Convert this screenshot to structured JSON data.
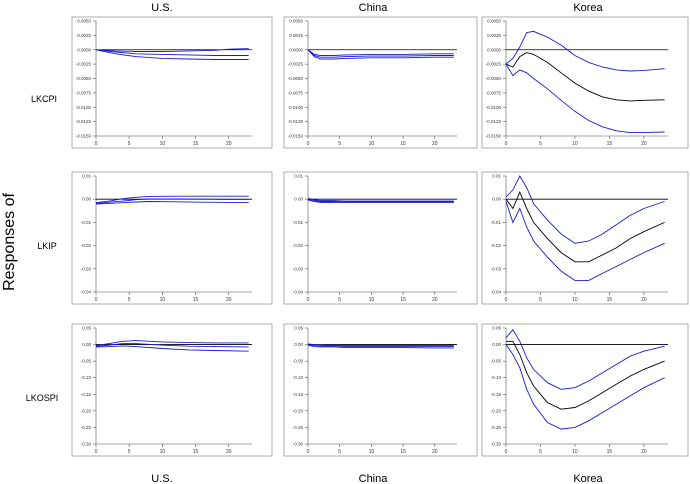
{
  "figure": {
    "y_title": "Responses of",
    "col_headers_top": [
      "U.S.",
      "China",
      "Korea"
    ],
    "col_headers_bottom": [
      "U.S.",
      "China",
      "Korea"
    ],
    "row_labels": [
      "LKCPI",
      "LKIP",
      "LKOSPI"
    ],
    "line_color": "#1a1ad6",
    "center_color": "#000000"
  },
  "chart_data": [
    {
      "type": "line",
      "variable": "LKCPI",
      "shock": "U.S.",
      "ylim": [
        -0.015,
        0.005
      ],
      "yticks": [
        "0.0050",
        "0.0025",
        "0.0000",
        "-0.0025",
        "-0.0050",
        "-0.0075",
        "-0.0100",
        "-0.0125",
        "-0.0150"
      ],
      "xticks": [
        "0",
        "5",
        "10",
        "15",
        "20"
      ],
      "series": [
        {
          "name": "upper",
          "x": [
            0,
            3,
            6,
            10,
            14,
            18,
            20,
            23
          ],
          "values": [
            0,
            -0.0002,
            -0.0003,
            -0.0003,
            -0.0002,
            -0.0001,
            0.0001,
            0.0002
          ]
        },
        {
          "name": "response",
          "x": [
            0,
            3,
            6,
            10,
            14,
            18,
            20,
            23
          ],
          "values": [
            0,
            -0.0004,
            -0.0007,
            -0.0008,
            -0.0009,
            -0.001,
            -0.001,
            -0.001
          ]
        },
        {
          "name": "lower",
          "x": [
            0,
            3,
            6,
            10,
            14,
            18,
            20,
            23
          ],
          "values": [
            0,
            -0.0007,
            -0.0012,
            -0.0015,
            -0.0016,
            -0.0017,
            -0.0017,
            -0.0017
          ]
        }
      ]
    },
    {
      "type": "line",
      "variable": "LKCPI",
      "shock": "China",
      "ylim": [
        -0.015,
        0.005
      ],
      "yticks": [
        "0.0050",
        "0.0025",
        "0.0000",
        "-0.0025",
        "-0.0050",
        "-0.0075",
        "-0.0100",
        "-0.0125",
        "-0.0150"
      ],
      "xticks": [
        "0",
        "5",
        "10",
        "15",
        "20"
      ],
      "series": [
        {
          "name": "upper",
          "x": [
            0,
            1,
            2,
            4,
            6,
            10,
            15,
            20,
            23
          ],
          "values": [
            0,
            -0.0008,
            -0.001,
            -0.001,
            -0.0009,
            -0.0008,
            -0.0008,
            -0.0007,
            -0.0007
          ]
        },
        {
          "name": "response",
          "x": [
            0,
            1,
            2,
            4,
            6,
            10,
            15,
            20,
            23
          ],
          "values": [
            0,
            -0.001,
            -0.0013,
            -0.0013,
            -0.0012,
            -0.0011,
            -0.0011,
            -0.001,
            -0.001
          ]
        },
        {
          "name": "lower",
          "x": [
            0,
            1,
            2,
            4,
            6,
            10,
            15,
            20,
            23
          ],
          "values": [
            0,
            -0.0012,
            -0.0016,
            -0.0016,
            -0.0015,
            -0.0014,
            -0.0014,
            -0.0013,
            -0.0013
          ]
        }
      ]
    },
    {
      "type": "line",
      "variable": "LKCPI",
      "shock": "Korea",
      "ylim": [
        -0.015,
        0.005
      ],
      "yticks": [
        "0.0050",
        "0.0025",
        "0.0000",
        "-0.0025",
        "-0.0050",
        "-0.0075",
        "-0.0100",
        "-0.0125",
        "-0.0150"
      ],
      "xticks": [
        "0",
        "5",
        "10",
        "15",
        "20"
      ],
      "series": [
        {
          "name": "upper",
          "x": [
            0,
            1,
            2,
            3,
            4,
            6,
            8,
            10,
            12,
            14,
            16,
            18,
            20,
            23
          ],
          "values": [
            -0.0025,
            -0.0015,
            0.0005,
            0.003,
            0.0032,
            0.0022,
            0.0008,
            -0.001,
            -0.0022,
            -0.003,
            -0.0035,
            -0.0037,
            -0.0036,
            -0.0033
          ]
        },
        {
          "name": "response",
          "x": [
            0,
            1,
            2,
            3,
            4,
            6,
            8,
            10,
            12,
            14,
            16,
            18,
            20,
            23
          ],
          "values": [
            -0.0025,
            -0.003,
            -0.0012,
            -0.0005,
            -0.0008,
            -0.0022,
            -0.004,
            -0.0058,
            -0.0072,
            -0.0082,
            -0.0087,
            -0.0089,
            -0.0088,
            -0.0087
          ]
        },
        {
          "name": "lower",
          "x": [
            0,
            1,
            2,
            3,
            4,
            6,
            8,
            10,
            12,
            14,
            16,
            18,
            20,
            23
          ],
          "values": [
            -0.0025,
            -0.0045,
            -0.0035,
            -0.004,
            -0.005,
            -0.0068,
            -0.0088,
            -0.0107,
            -0.0123,
            -0.0134,
            -0.0141,
            -0.0144,
            -0.0144,
            -0.0143
          ]
        }
      ]
    },
    {
      "type": "line",
      "variable": "LKIP",
      "shock": "U.S.",
      "ylim": [
        -0.04,
        0.01
      ],
      "yticks": [
        "0.01",
        "0.00",
        "-0.01",
        "-0.02",
        "-0.03",
        "-0.04"
      ],
      "xticks": [
        "0",
        "5",
        "10",
        "15",
        "20"
      ],
      "series": [
        {
          "name": "upper",
          "x": [
            0,
            2,
            4,
            6,
            8,
            12,
            16,
            20,
            23
          ],
          "values": [
            -0.0015,
            -0.0008,
            0.0002,
            0.0008,
            0.0012,
            0.0013,
            0.0013,
            0.0013,
            0.0013
          ]
        },
        {
          "name": "response",
          "x": [
            0,
            2,
            4,
            6,
            8,
            12,
            16,
            20,
            23
          ],
          "values": [
            -0.0018,
            -0.0013,
            -0.0008,
            -0.0002,
            0.0001,
            0.0001,
            0.0,
            -0.0001,
            -0.0001
          ]
        },
        {
          "name": "lower",
          "x": [
            0,
            2,
            4,
            6,
            8,
            12,
            16,
            20,
            23
          ],
          "values": [
            -0.0021,
            -0.0018,
            -0.0015,
            -0.0012,
            -0.001,
            -0.0011,
            -0.0013,
            -0.0014,
            -0.0014
          ]
        }
      ]
    },
    {
      "type": "line",
      "variable": "LKIP",
      "shock": "China",
      "ylim": [
        -0.04,
        0.01
      ],
      "yticks": [
        "0.01",
        "0.00",
        "-0.01",
        "-0.02",
        "-0.03",
        "-0.04"
      ],
      "xticks": [
        "0",
        "5",
        "10",
        "15",
        "20"
      ],
      "series": [
        {
          "name": "upper",
          "x": [
            0,
            1,
            2,
            4,
            6,
            10,
            15,
            20,
            23
          ],
          "values": [
            0.0003,
            -0.0002,
            -0.0006,
            -0.0006,
            -0.0008,
            -0.0008,
            -0.0008,
            -0.0008,
            -0.0008
          ]
        },
        {
          "name": "response",
          "x": [
            0,
            1,
            2,
            4,
            6,
            10,
            15,
            20,
            23
          ],
          "values": [
            0.0,
            -0.0006,
            -0.001,
            -0.001,
            -0.0011,
            -0.0011,
            -0.0011,
            -0.0011,
            -0.0011
          ]
        },
        {
          "name": "lower",
          "x": [
            0,
            1,
            2,
            4,
            6,
            10,
            15,
            20,
            23
          ],
          "values": [
            -0.0003,
            -0.001,
            -0.0014,
            -0.0014,
            -0.0014,
            -0.0014,
            -0.0014,
            -0.0014,
            -0.0014
          ]
        }
      ]
    },
    {
      "type": "line",
      "variable": "LKIP",
      "shock": "Korea",
      "ylim": [
        -0.04,
        0.01
      ],
      "yticks": [
        "0.01",
        "0.00",
        "-0.01",
        "-0.02",
        "-0.03",
        "-0.04"
      ],
      "xticks": [
        "0",
        "5",
        "10",
        "15",
        "20"
      ],
      "series": [
        {
          "name": "upper",
          "x": [
            0,
            1,
            2,
            3,
            4,
            6,
            8,
            10,
            12,
            14,
            16,
            18,
            20,
            23
          ],
          "values": [
            0.001,
            0.004,
            0.01,
            0.005,
            -0.002,
            -0.009,
            -0.015,
            -0.019,
            -0.018,
            -0.015,
            -0.011,
            -0.007,
            -0.004,
            -0.001
          ]
        },
        {
          "name": "response",
          "x": [
            0,
            1,
            2,
            3,
            4,
            6,
            8,
            10,
            12,
            14,
            16,
            18,
            20,
            23
          ],
          "values": [
            0.0,
            -0.004,
            0.003,
            -0.004,
            -0.01,
            -0.017,
            -0.023,
            -0.027,
            -0.027,
            -0.024,
            -0.021,
            -0.017,
            -0.014,
            -0.01
          ]
        },
        {
          "name": "lower",
          "x": [
            0,
            1,
            2,
            3,
            4,
            6,
            8,
            10,
            12,
            14,
            16,
            18,
            20,
            23
          ],
          "values": [
            -0.001,
            -0.01,
            -0.004,
            -0.012,
            -0.018,
            -0.025,
            -0.031,
            -0.035,
            -0.035,
            -0.032,
            -0.029,
            -0.026,
            -0.023,
            -0.019
          ]
        }
      ]
    },
    {
      "type": "line",
      "variable": "LKOSPI",
      "shock": "U.S.",
      "ylim": [
        -0.3,
        0.05
      ],
      "yticks": [
        "0.05",
        "0.00",
        "-0.05",
        "-0.10",
        "-0.15",
        "-0.20",
        "-0.25",
        "-0.30"
      ],
      "xticks": [
        "0",
        "5",
        "10",
        "15",
        "20"
      ],
      "series": [
        {
          "name": "upper",
          "x": [
            0,
            2,
            4,
            6,
            10,
            14,
            18,
            23
          ],
          "values": [
            -0.003,
            0.003,
            0.01,
            0.012,
            0.008,
            0.006,
            0.005,
            0.005
          ]
        },
        {
          "name": "response",
          "x": [
            0,
            2,
            4,
            6,
            10,
            14,
            18,
            23
          ],
          "values": [
            -0.005,
            -0.002,
            0.003,
            0.003,
            -0.002,
            -0.005,
            -0.006,
            -0.007
          ]
        },
        {
          "name": "lower",
          "x": [
            0,
            2,
            4,
            6,
            10,
            14,
            18,
            23
          ],
          "values": [
            -0.007,
            -0.006,
            -0.004,
            -0.006,
            -0.012,
            -0.016,
            -0.018,
            -0.02
          ]
        }
      ]
    },
    {
      "type": "line",
      "variable": "LKOSPI",
      "shock": "China",
      "ylim": [
        -0.3,
        0.05
      ],
      "yticks": [
        "0.05",
        "0.00",
        "-0.05",
        "-0.10",
        "-0.15",
        "-0.20",
        "-0.25",
        "-0.30"
      ],
      "xticks": [
        "0",
        "5",
        "10",
        "15",
        "20"
      ],
      "series": [
        {
          "name": "upper",
          "x": [
            0,
            1,
            2,
            4,
            6,
            10,
            15,
            20,
            23
          ],
          "values": [
            0.002,
            0.0,
            -0.001,
            -0.002,
            -0.003,
            -0.003,
            -0.003,
            -0.003,
            -0.003
          ]
        },
        {
          "name": "response",
          "x": [
            0,
            1,
            2,
            4,
            6,
            10,
            15,
            20,
            23
          ],
          "values": [
            0.0,
            -0.003,
            -0.004,
            -0.004,
            -0.006,
            -0.006,
            -0.006,
            -0.006,
            -0.006
          ]
        },
        {
          "name": "lower",
          "x": [
            0,
            1,
            2,
            4,
            6,
            10,
            15,
            20,
            23
          ],
          "values": [
            -0.002,
            -0.006,
            -0.007,
            -0.007,
            -0.009,
            -0.009,
            -0.009,
            -0.01,
            -0.01
          ]
        }
      ]
    },
    {
      "type": "line",
      "variable": "LKOSPI",
      "shock": "Korea",
      "ylim": [
        -0.3,
        0.05
      ],
      "yticks": [
        "0.05",
        "0.00",
        "-0.05",
        "-0.10",
        "-0.15",
        "-0.20",
        "-0.25",
        "-0.30"
      ],
      "xticks": [
        "0",
        "5",
        "10",
        "15",
        "20"
      ],
      "series": [
        {
          "name": "upper",
          "x": [
            0,
            1,
            2,
            3,
            4,
            6,
            8,
            10,
            12,
            14,
            16,
            18,
            20,
            23
          ],
          "values": [
            0.02,
            0.045,
            0.01,
            -0.04,
            -0.075,
            -0.115,
            -0.135,
            -0.13,
            -0.11,
            -0.085,
            -0.06,
            -0.035,
            -0.02,
            -0.005
          ]
        },
        {
          "name": "response",
          "x": [
            0,
            1,
            2,
            3,
            4,
            6,
            8,
            10,
            12,
            14,
            16,
            18,
            20,
            23
          ],
          "values": [
            0.01,
            0.01,
            -0.03,
            -0.085,
            -0.125,
            -0.175,
            -0.195,
            -0.19,
            -0.17,
            -0.145,
            -0.12,
            -0.095,
            -0.075,
            -0.05
          ]
        },
        {
          "name": "lower",
          "x": [
            0,
            1,
            2,
            3,
            4,
            6,
            8,
            10,
            12,
            14,
            16,
            18,
            20,
            23
          ],
          "values": [
            0.0,
            -0.03,
            -0.07,
            -0.135,
            -0.18,
            -0.235,
            -0.255,
            -0.25,
            -0.23,
            -0.205,
            -0.18,
            -0.155,
            -0.13,
            -0.1
          ]
        }
      ]
    }
  ]
}
